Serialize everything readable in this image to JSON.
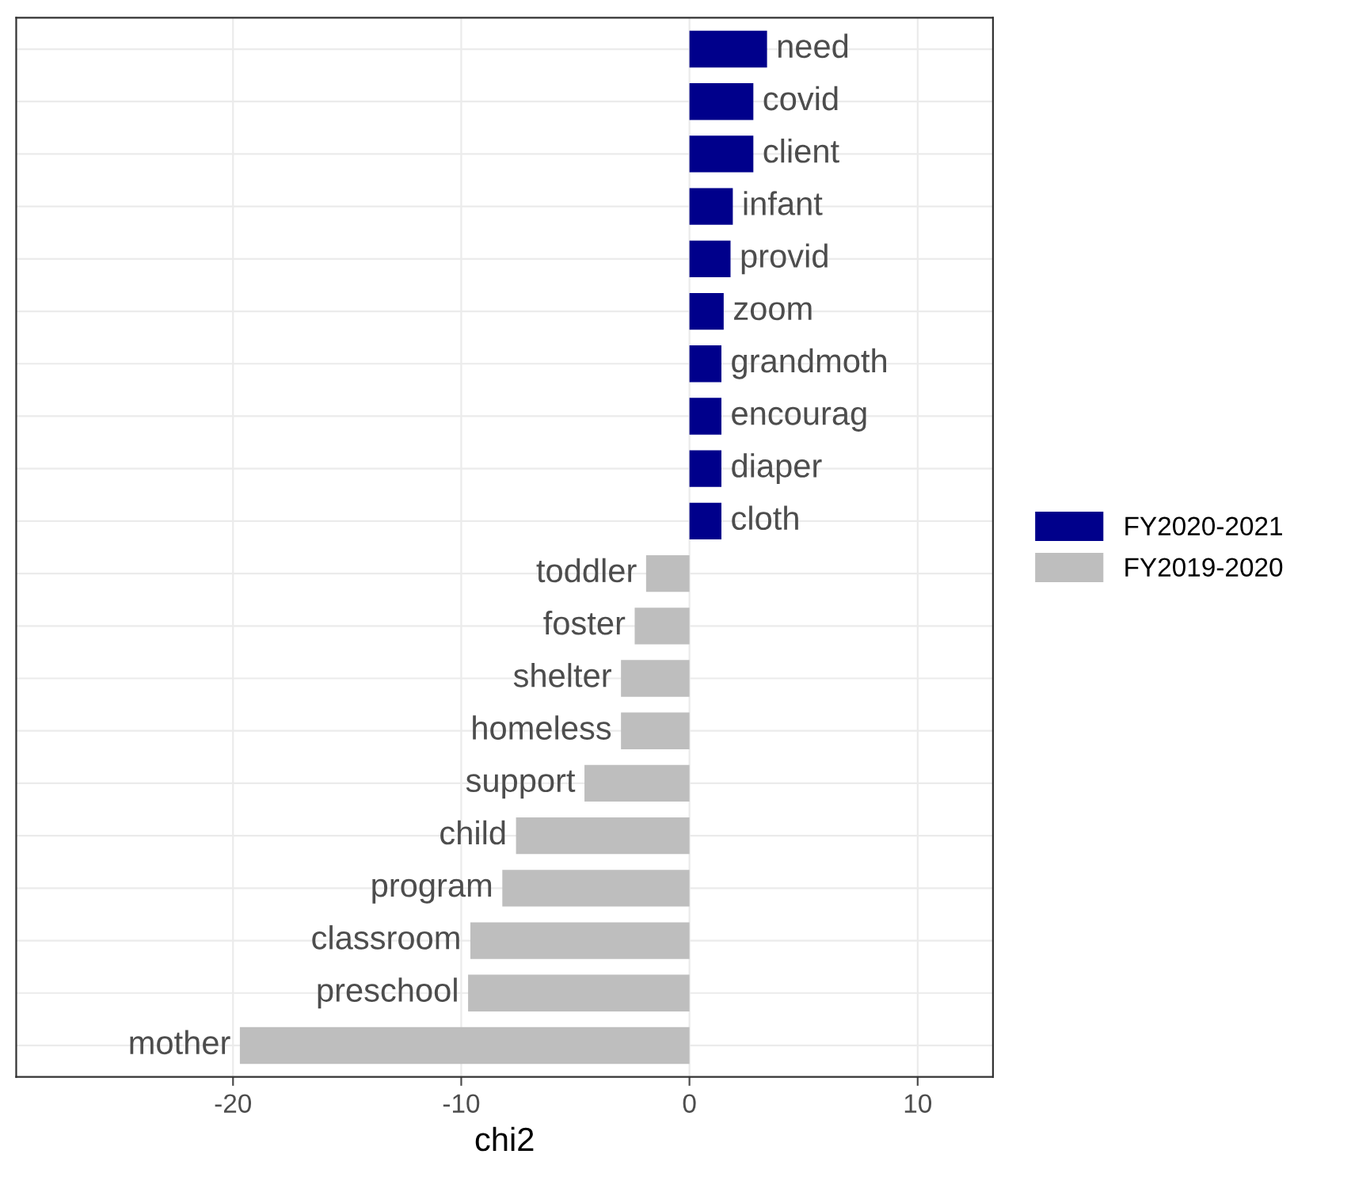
{
  "chart_data": {
    "type": "bar",
    "orientation": "horizontal",
    "xlabel": "chi2",
    "categories": [
      "need",
      "covid",
      "client",
      "infant",
      "provid",
      "zoom",
      "grandmoth",
      "encourag",
      "diaper",
      "cloth",
      "toddler",
      "foster",
      "shelter",
      "homeless",
      "support",
      "child",
      "program",
      "classroom",
      "preschool",
      "mother"
    ],
    "series": [
      {
        "name": "FY2020-2021",
        "color": "#00008b",
        "values": [
          3.4,
          2.8,
          2.8,
          1.9,
          1.8,
          1.5,
          1.4,
          1.4,
          1.4,
          1.4,
          null,
          null,
          null,
          null,
          null,
          null,
          null,
          null,
          null,
          null
        ]
      },
      {
        "name": "FY2019-2020",
        "color": "#bebebe",
        "values": [
          null,
          null,
          null,
          null,
          null,
          null,
          null,
          null,
          null,
          null,
          -1.9,
          -2.4,
          -3.0,
          -3.0,
          -4.6,
          -7.6,
          -8.2,
          -9.6,
          -9.7,
          -19.7
        ]
      }
    ],
    "xlim": [
      -29.5,
      13.3
    ],
    "xticks": [
      -20,
      -10,
      0,
      10
    ],
    "grid": true,
    "legend": "right",
    "tick_labels": "x"
  }
}
